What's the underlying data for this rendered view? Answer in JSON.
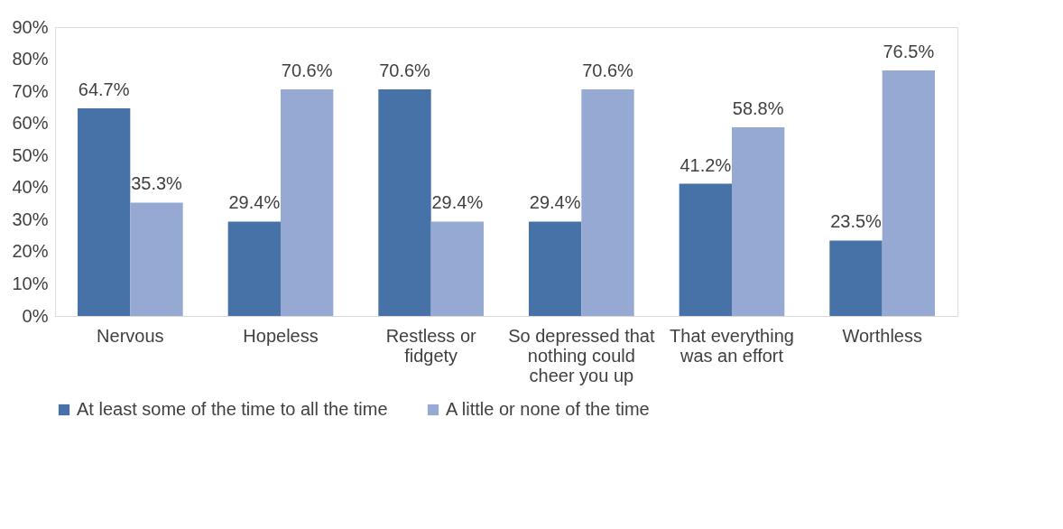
{
  "chart_data": {
    "type": "bar",
    "categories": [
      "Nervous",
      "Hopeless",
      "Restless or fidgety",
      "So depressed that nothing could cheer you up",
      "That everything was an effort",
      "Worthless"
    ],
    "series": [
      {
        "name": "At least some of the time to all the time",
        "color": "#4672a7",
        "values": [
          64.7,
          29.4,
          70.6,
          29.4,
          41.2,
          23.5
        ],
        "value_labels": [
          "64.7%",
          "29.4%",
          "70.6%",
          "29.4%",
          "41.2%",
          "23.5%"
        ]
      },
      {
        "name": "A little or none of the time",
        "color": "#95a9d2",
        "values": [
          35.3,
          70.6,
          29.4,
          70.6,
          58.8,
          76.5
        ],
        "value_labels": [
          "35.3%",
          "70.6%",
          "29.4%",
          "70.6%",
          "58.8%",
          "76.5%"
        ]
      }
    ],
    "ylim": [
      0,
      90
    ],
    "yticks": [
      {
        "value": 0,
        "label": "0%"
      },
      {
        "value": 10,
        "label": "10%"
      },
      {
        "value": 20,
        "label": "20%"
      },
      {
        "value": 30,
        "label": "30%"
      },
      {
        "value": 40,
        "label": "40%"
      },
      {
        "value": 50,
        "label": "50%"
      },
      {
        "value": 60,
        "label": "60%"
      },
      {
        "value": 70,
        "label": "70%"
      },
      {
        "value": 80,
        "label": "80%"
      },
      {
        "value": 90,
        "label": "90%"
      }
    ],
    "grid": false,
    "legend": "bottom"
  }
}
